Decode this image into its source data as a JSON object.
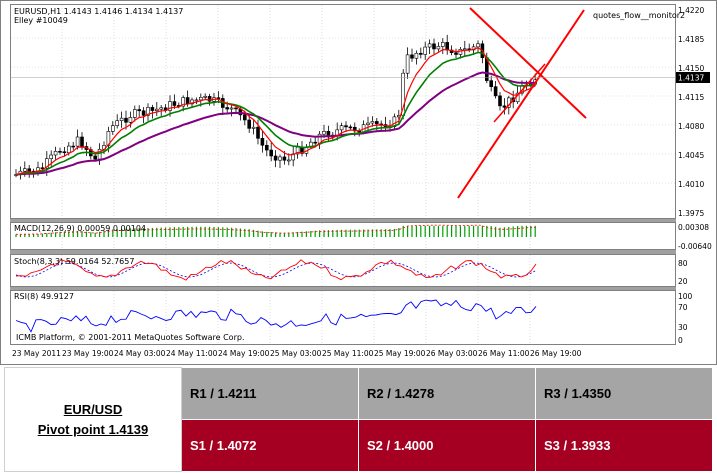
{
  "chart": {
    "header_symbol": "EURUSD,H1  1.4143 1.4146 1.4134 1.4137",
    "header_ea": "Elley #10049",
    "indicator_name": "quotes_flow__monitor2",
    "current_price": "1.4137",
    "price_ticks": [
      "1.4220",
      "1.4185",
      "1.4150",
      "1.4115",
      "1.4080",
      "1.4045",
      "1.4010",
      "1.3975"
    ],
    "macd_label": "MACD(12,26,9) 0.00059 0.00104",
    "macd_ticks": [
      "0.00308",
      "-0.00640"
    ],
    "stoch_label": "Stoch(8,3,3) 59.0164 52.7657",
    "stoch_ticks": [
      "80",
      "20"
    ],
    "rsi_label": "RSI(8) 49.9127",
    "rsi_ticks": [
      "100",
      "70",
      "30",
      "0"
    ],
    "copyright": "ICMB Platform, © 2001-2011 MetaQuotes Software Corp.",
    "time_labels": [
      "23 May 2011",
      "23 May 19:00",
      "24 May 03:00",
      "24 May 11:00",
      "24 May 19:00",
      "25 May 03:00",
      "25 May 11:00",
      "25 May 19:00",
      "26 May 03:00",
      "26 May 11:00",
      "26 May 19:00"
    ],
    "colors": {
      "bull_candle": "#ffffff",
      "bear_candle": "#000000",
      "ema_red": "#ff0000",
      "ema_green": "#008000",
      "ema_purple": "#800080",
      "trendline": "#ff0000",
      "macd_hist": "#00a000",
      "stoch_main": "#ff0000",
      "stoch_signal": "#0000ff",
      "rsi_line": "#0000ff"
    }
  },
  "pivot": {
    "pair": "EUR/USD",
    "pivot_point": "Pivot point 1.4139",
    "r1": "R1 / 1.4211",
    "r2": "R2 / 1.4278",
    "r3": "R3 / 1.4350",
    "s1": "S1 / 1.4072",
    "s2": "S2 / 1.4000",
    "s3": "S3 / 1.3933",
    "colors": {
      "resistance_bg": "#a5a5a5",
      "support_bg": "#a50021"
    }
  }
}
